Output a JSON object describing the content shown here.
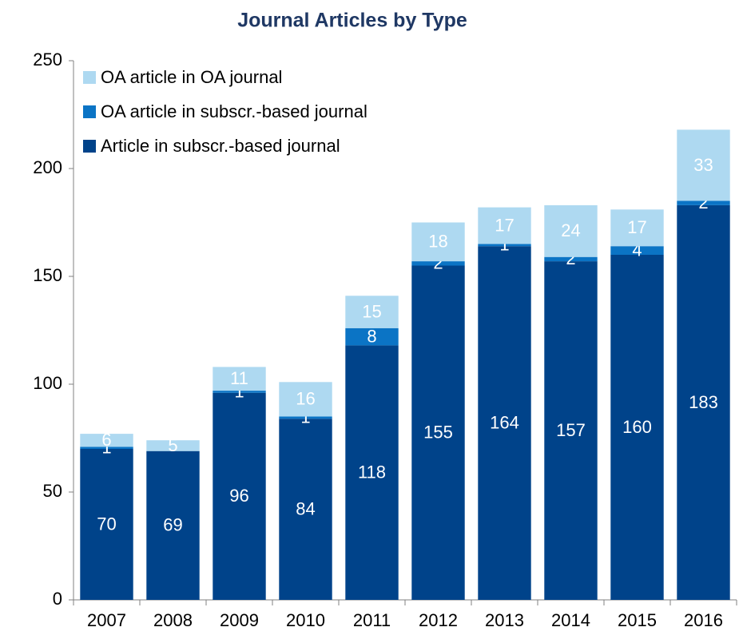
{
  "chart_data": {
    "type": "stacked_bar",
    "title": "Journal Articles by Type",
    "categories": [
      "2007",
      "2008",
      "2009",
      "2010",
      "2011",
      "2012",
      "2013",
      "2014",
      "2015",
      "2016"
    ],
    "series": [
      {
        "name": "Article in subscr.-based journal",
        "color": "#00438a",
        "values": [
          70,
          69,
          96,
          84,
          118,
          155,
          164,
          157,
          160,
          183
        ]
      },
      {
        "name": "OA article in subscr.-based journal",
        "color": "#0b74c5",
        "values": [
          1,
          null,
          1,
          1,
          8,
          2,
          1,
          2,
          4,
          2
        ]
      },
      {
        "name": "OA article in OA journal",
        "color": "#aed9f1",
        "values": [
          6,
          5,
          11,
          16,
          15,
          18,
          17,
          24,
          17,
          33
        ]
      }
    ],
    "ylim": [
      0,
      250
    ],
    "yticks": [
      0,
      50,
      100,
      150,
      200,
      250
    ],
    "grid": false,
    "legend": "top-left"
  }
}
